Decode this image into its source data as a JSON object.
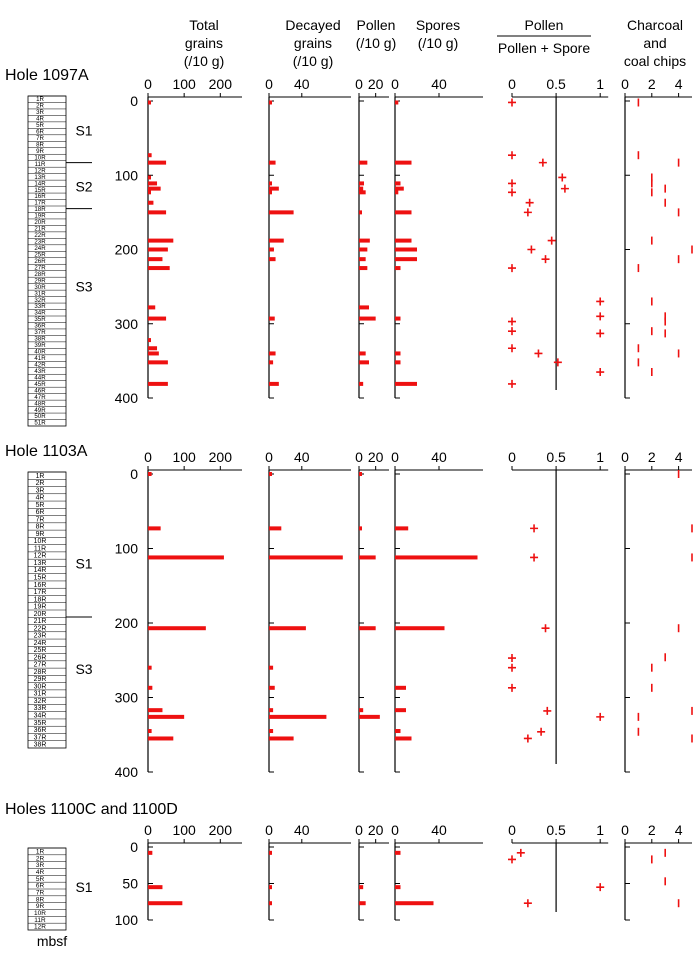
{
  "colors": {
    "data": "#ee1111",
    "ink": "#000000"
  },
  "column_headers": [
    {
      "lines": [
        "Total",
        "grains",
        "(/10 g)"
      ]
    },
    {
      "lines": [
        "Decayed",
        "grains",
        "(/10 g)"
      ]
    },
    {
      "lines": [
        "Pollen",
        "(/10 g)"
      ]
    },
    {
      "lines": [
        "Spores",
        "(/10 g)"
      ]
    },
    {
      "lines": [
        "Pollen",
        "Pollen + Spore"
      ]
    },
    {
      "lines": [
        "Charcoal",
        "and",
        "coal chips"
      ]
    }
  ],
  "depth_unit_label": "mbsf",
  "chart_data": [
    {
      "type": "bar",
      "title": "Hole 1097A",
      "depth_range": [
        0,
        400
      ],
      "depth_ticks": [
        0,
        100,
        200,
        300,
        400
      ],
      "core_labels": [
        "1R",
        "2R",
        "3R",
        "4R",
        "5R",
        "6R",
        "7R",
        "8R",
        "9R",
        "10R",
        "11R",
        "12R",
        "13R",
        "14R",
        "15R",
        "16R",
        "17R",
        "18R",
        "19R",
        "20R",
        "21R",
        "22R",
        "23R",
        "24R",
        "25R",
        "26R",
        "27R",
        "28R",
        "29R",
        "30R",
        "31R",
        "32R",
        "33R",
        "34R",
        "35R",
        "36R",
        "37R",
        "38R",
        "39R",
        "40R",
        "41R",
        "42R",
        "43R",
        "44R",
        "45R",
        "46R",
        "47R",
        "48R",
        "49R",
        "50R",
        "51R"
      ],
      "units": [
        {
          "label": "S1",
          "depth": 40
        },
        {
          "label": "S2",
          "depth": 115
        },
        {
          "label": "S3",
          "depth": 250
        }
      ],
      "unit_boundaries": [
        83,
        145
      ],
      "panels": {
        "total": {
          "ticks": [
            0,
            100,
            200
          ],
          "max": 260,
          "depths": [
            2,
            73,
            83,
            103,
            111,
            118,
            123,
            137,
            150,
            188,
            200,
            213,
            225,
            278,
            293,
            322,
            333,
            340,
            352,
            381
          ],
          "values": [
            5,
            10,
            50,
            8,
            25,
            35,
            5,
            15,
            50,
            70,
            55,
            40,
            60,
            20,
            50,
            5,
            25,
            30,
            55,
            55
          ]
        },
        "decayed": {
          "ticks": [
            0,
            40
          ],
          "max": 100,
          "depths": [
            2,
            83,
            111,
            118,
            123,
            150,
            188,
            200,
            213,
            293,
            340,
            352,
            381
          ],
          "values": [
            3,
            8,
            3,
            12,
            3,
            30,
            18,
            6,
            8,
            7,
            8,
            5,
            12
          ]
        },
        "pollen": {
          "ticks": [
            0,
            20
          ],
          "max": 36,
          "depths": [
            83,
            111,
            118,
            123,
            150,
            188,
            200,
            213,
            225,
            278,
            293,
            340,
            352,
            381
          ],
          "values": [
            10,
            6,
            5,
            8,
            3,
            13,
            10,
            8,
            10,
            12,
            20,
            8,
            12,
            5
          ]
        },
        "spores": {
          "ticks": [
            0,
            40
          ],
          "max": 80,
          "depths": [
            2,
            83,
            111,
            118,
            123,
            150,
            188,
            200,
            213,
            225,
            293,
            340,
            352,
            381
          ],
          "values": [
            3,
            15,
            5,
            8,
            3,
            15,
            15,
            20,
            20,
            5,
            5,
            5,
            5,
            20
          ]
        },
        "ratio": {
          "ticks": [
            0,
            0.5,
            1
          ],
          "max": 1.1,
          "reference": 0.5,
          "depths": [
            2,
            73,
            83,
            103,
            111,
            118,
            123,
            137,
            150,
            188,
            200,
            213,
            225,
            270,
            290,
            297,
            310,
            313,
            333,
            340,
            352,
            365,
            381
          ],
          "values": [
            0,
            0,
            0.35,
            0.57,
            0,
            0.6,
            0,
            0.2,
            0.18,
            0.45,
            0.22,
            0.38,
            0,
            1,
            1,
            0,
            0,
            1,
            0,
            0.3,
            0.52,
            1,
            0
          ]
        },
        "charcoal": {
          "ticks": [
            0,
            2,
            4
          ],
          "max": 5,
          "depths": [
            2,
            73,
            83,
            103,
            111,
            118,
            123,
            137,
            150,
            188,
            200,
            213,
            225,
            270,
            290,
            297,
            310,
            313,
            333,
            340,
            352,
            365
          ],
          "values": [
            1,
            1,
            4,
            2,
            2,
            3,
            2,
            3,
            4,
            2,
            5,
            4,
            1,
            2,
            3,
            3,
            2,
            3,
            1,
            4,
            1,
            2
          ]
        }
      }
    },
    {
      "type": "bar",
      "title": "Hole 1103A",
      "depth_range": [
        0,
        400
      ],
      "depth_ticks": [
        0,
        100,
        200,
        300,
        400
      ],
      "core_labels": [
        "1R",
        "2R",
        "3R",
        "4R",
        "5R",
        "6R",
        "7R",
        "8R",
        "9R",
        "10R",
        "11R",
        "12R",
        "13R",
        "14R",
        "15R",
        "16R",
        "17R",
        "18R",
        "19R",
        "20R",
        "21R",
        "22R",
        "23R",
        "24R",
        "25R",
        "26R",
        "27R",
        "28R",
        "29R",
        "30R",
        "31R",
        "32R",
        "33R",
        "34R",
        "35R",
        "36R",
        "37R",
        "38R"
      ],
      "units": [
        {
          "label": "S1",
          "depth": 120
        },
        {
          "label": "S3",
          "depth": 262
        }
      ],
      "unit_boundaries": [
        192
      ],
      "panels": {
        "total": {
          "ticks": [
            0,
            100,
            200
          ],
          "max": 260,
          "depths": [
            0,
            73,
            112,
            207,
            260,
            287,
            317,
            326,
            345,
            355
          ],
          "values": [
            10,
            35,
            210,
            160,
            10,
            12,
            40,
            100,
            10,
            70
          ]
        },
        "decayed": {
          "ticks": [
            0,
            40
          ],
          "max": 100,
          "depths": [
            0,
            73,
            112,
            207,
            260,
            287,
            317,
            326,
            345,
            355
          ],
          "values": [
            3,
            15,
            90,
            45,
            5,
            7,
            5,
            70,
            5,
            30
          ]
        },
        "pollen": {
          "ticks": [
            0,
            20
          ],
          "max": 36,
          "depths": [
            0,
            73,
            112,
            207,
            317,
            326
          ],
          "values": [
            3,
            3,
            20,
            20,
            5,
            25
          ]
        },
        "spores": {
          "ticks": [
            0,
            40
          ],
          "max": 80,
          "depths": [
            73,
            112,
            207,
            287,
            317,
            345,
            355
          ],
          "values": [
            12,
            75,
            45,
            10,
            10,
            5,
            15
          ]
        },
        "ratio": {
          "ticks": [
            0,
            0.5,
            1
          ],
          "max": 1.1,
          "reference": 0.5,
          "depths": [
            73,
            112,
            207,
            247,
            260,
            287,
            318,
            326,
            346,
            355
          ],
          "values": [
            0.25,
            0.25,
            0.38,
            0,
            0,
            0,
            0.4,
            1,
            0.33,
            0.18
          ]
        },
        "charcoal": {
          "ticks": [
            0,
            2,
            4
          ],
          "max": 5,
          "depths": [
            0,
            73,
            112,
            207,
            246,
            260,
            287,
            318,
            326,
            346,
            355
          ],
          "values": [
            4,
            5,
            5,
            4,
            3,
            2,
            2,
            5,
            1,
            1,
            5
          ]
        }
      }
    },
    {
      "type": "bar",
      "title": "Holes 1100C and 1100D",
      "depth_range": [
        0,
        100
      ],
      "depth_ticks": [
        0,
        50,
        100
      ],
      "core_labels": [
        "1R",
        "2R",
        "3R",
        "4R",
        "5R",
        "6R",
        "7R",
        "8R",
        "9R",
        "10R",
        "11R",
        "12R"
      ],
      "units": [
        {
          "label": "S1",
          "depth": 55
        }
      ],
      "unit_boundaries": [],
      "panels": {
        "total": {
          "ticks": [
            0,
            100,
            200
          ],
          "max": 260,
          "depths": [
            8,
            55,
            77
          ],
          "values": [
            12,
            40,
            95
          ]
        },
        "decayed": {
          "ticks": [
            0,
            40
          ],
          "max": 100,
          "depths": [
            8,
            55,
            77
          ],
          "values": [
            3,
            3,
            3
          ]
        },
        "pollen": {
          "ticks": [
            0,
            20
          ],
          "max": 36,
          "depths": [
            55,
            77
          ],
          "values": [
            5,
            8
          ]
        },
        "spores": {
          "ticks": [
            0,
            40
          ],
          "max": 80,
          "depths": [
            8,
            55,
            77
          ],
          "values": [
            5,
            5,
            35
          ]
        },
        "ratio": {
          "ticks": [
            0,
            0.5,
            1
          ],
          "max": 1.1,
          "reference": 0.5,
          "depths": [
            8,
            17,
            55,
            77
          ],
          "values": [
            0.1,
            0,
            1,
            0.18
          ]
        },
        "charcoal": {
          "ticks": [
            0,
            2,
            4
          ],
          "max": 5,
          "depths": [
            8,
            17,
            47,
            77
          ],
          "values": [
            3,
            2,
            3,
            4
          ]
        }
      }
    }
  ]
}
